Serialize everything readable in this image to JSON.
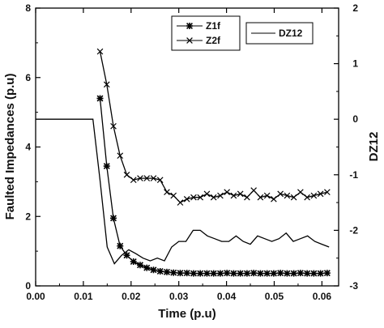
{
  "chart_data": {
    "type": "line",
    "xlabel": "Time (p.u)",
    "ylabel": "Faulted Impedances (p.u)",
    "y2label": "DZ12",
    "xlim": [
      0.0,
      0.0635
    ],
    "ylim": [
      0,
      8
    ],
    "y2lim": [
      -3,
      2
    ],
    "grid": false,
    "xticks": [
      "0.00",
      "0.01",
      "0.02",
      "0.03",
      "0.04",
      "0.05",
      "0.06"
    ],
    "yticks": [
      "0",
      "2",
      "4",
      "6",
      "8"
    ],
    "y2ticks": [
      "-3",
      "-2",
      "-1",
      "0",
      "1",
      "2"
    ],
    "series": [
      {
        "name": "Z1f",
        "axis": "left",
        "marker": "asterisk",
        "x": [
          0.0135,
          0.0149,
          0.0163,
          0.0177,
          0.0191,
          0.0205,
          0.0219,
          0.0233,
          0.0247,
          0.0261,
          0.0275,
          0.0289,
          0.0303,
          0.0317,
          0.0331,
          0.0345,
          0.0359,
          0.0373,
          0.0387,
          0.0401,
          0.0415,
          0.0429,
          0.0443,
          0.0457,
          0.0471,
          0.0485,
          0.0499,
          0.0513,
          0.0527,
          0.0541,
          0.0555,
          0.0569,
          0.0583,
          0.0597,
          0.0611
        ],
        "y": [
          5.4,
          3.45,
          1.95,
          1.15,
          0.88,
          0.7,
          0.6,
          0.52,
          0.46,
          0.42,
          0.4,
          0.38,
          0.37,
          0.37,
          0.36,
          0.36,
          0.36,
          0.36,
          0.36,
          0.37,
          0.36,
          0.36,
          0.36,
          0.37,
          0.36,
          0.36,
          0.36,
          0.37,
          0.36,
          0.36,
          0.37,
          0.36,
          0.36,
          0.36,
          0.37
        ]
      },
      {
        "name": "Z2f",
        "axis": "left",
        "marker": "x",
        "x": [
          0.0135,
          0.0149,
          0.0163,
          0.0177,
          0.0191,
          0.0205,
          0.0219,
          0.0233,
          0.0247,
          0.0261,
          0.0275,
          0.0289,
          0.0303,
          0.0317,
          0.0331,
          0.0345,
          0.0359,
          0.0373,
          0.0387,
          0.0401,
          0.0415,
          0.0429,
          0.0443,
          0.0457,
          0.0471,
          0.0485,
          0.0499,
          0.0513,
          0.0527,
          0.0541,
          0.0555,
          0.0569,
          0.0583,
          0.0597,
          0.0611
        ],
        "y": [
          6.75,
          5.8,
          4.6,
          3.75,
          3.2,
          3.05,
          3.1,
          3.1,
          3.1,
          3.05,
          2.7,
          2.6,
          2.4,
          2.5,
          2.55,
          2.55,
          2.65,
          2.55,
          2.6,
          2.7,
          2.6,
          2.65,
          2.55,
          2.75,
          2.55,
          2.6,
          2.5,
          2.65,
          2.6,
          2.55,
          2.7,
          2.55,
          2.6,
          2.65,
          2.7
        ]
      },
      {
        "name": "DZ12",
        "axis": "right",
        "marker": "none",
        "x": [
          0.0,
          0.012,
          0.0135,
          0.015,
          0.0165,
          0.018,
          0.0195,
          0.021,
          0.0225,
          0.024,
          0.0255,
          0.027,
          0.0285,
          0.03,
          0.0315,
          0.033,
          0.0345,
          0.036,
          0.0375,
          0.039,
          0.0405,
          0.042,
          0.0435,
          0.045,
          0.0465,
          0.048,
          0.0495,
          0.051,
          0.0525,
          0.054,
          0.0555,
          0.057,
          0.0585,
          0.06,
          0.0615
        ],
        "y": [
          0.0,
          0.0,
          -1.1,
          -2.3,
          -2.6,
          -2.45,
          -2.35,
          -2.42,
          -2.5,
          -2.55,
          -2.5,
          -2.55,
          -2.3,
          -2.2,
          -2.2,
          -2.0,
          -2.0,
          -2.1,
          -2.15,
          -2.2,
          -2.2,
          -2.1,
          -2.2,
          -2.25,
          -2.1,
          -2.15,
          -2.2,
          -2.15,
          -2.05,
          -2.2,
          -2.15,
          -2.1,
          -2.2,
          -2.25,
          -2.3
        ]
      }
    ],
    "legend": [
      {
        "label": "Z1f",
        "marker": "asterisk",
        "placement": "top-right"
      },
      {
        "label": "Z2f",
        "marker": "x",
        "placement": "top-right"
      },
      {
        "label": "DZ12",
        "marker": "line",
        "placement": "top-right"
      }
    ]
  }
}
